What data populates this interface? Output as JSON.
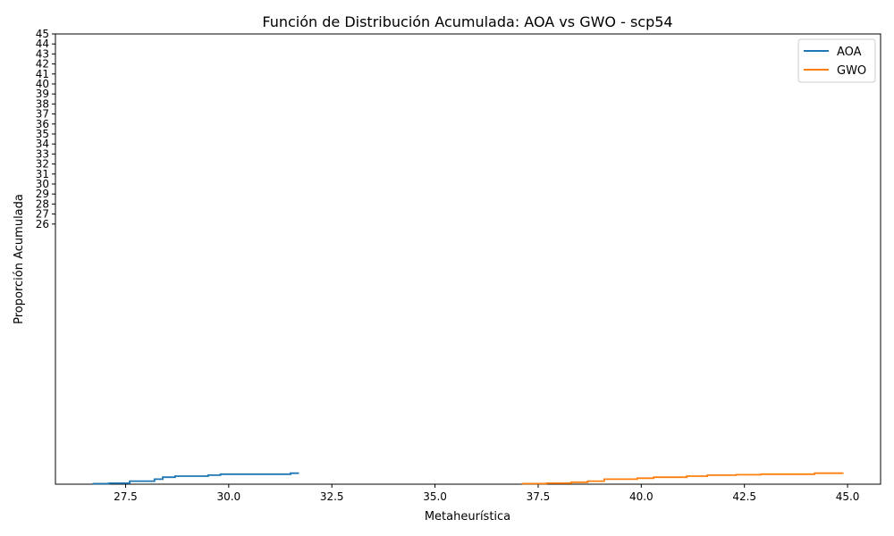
{
  "chart_data": {
    "type": "line",
    "title": "Función de Distribución Acumulada: AOA vs GWO - scp54",
    "xlabel": "Metaheurística",
    "ylabel": "Proporción Acumulada",
    "xlim": [
      25.8,
      45.8
    ],
    "ylim": [
      0,
      45
    ],
    "x_ticks": [
      27.5,
      30.0,
      32.5,
      35.0,
      37.5,
      40.0,
      42.5,
      45.0
    ],
    "x_tick_labels": [
      "27.5",
      "30.0",
      "32.5",
      "35.0",
      "37.5",
      "40.0",
      "42.5",
      "45.0"
    ],
    "y_ticks": [
      26,
      27,
      28,
      29,
      30,
      31,
      32,
      33,
      34,
      35,
      36,
      37,
      38,
      39,
      40,
      41,
      42,
      43,
      44,
      45
    ],
    "y_tick_labels": [
      "26",
      "27",
      "28",
      "29",
      "30",
      "31",
      "32",
      "33",
      "34",
      "35",
      "36",
      "37",
      "38",
      "39",
      "40",
      "41",
      "42",
      "43",
      "44",
      "45"
    ],
    "legend_position": "top-right",
    "series": [
      {
        "name": "AOA",
        "color": "#1f77b4",
        "x": [
          26.7,
          27.1,
          27.6,
          28.2,
          28.4,
          28.7,
          29.5,
          29.8,
          30.5,
          31.5,
          31.7
        ],
        "y": [
          0.05,
          0.1,
          0.3,
          0.5,
          0.7,
          0.8,
          0.9,
          1.0,
          1.0,
          1.1,
          1.1
        ]
      },
      {
        "name": "GWO",
        "color": "#ff7f0e",
        "x": [
          37.1,
          37.7,
          38.3,
          38.7,
          39.1,
          39.9,
          40.3,
          41.1,
          41.6,
          42.3,
          42.9,
          44.2,
          44.9
        ],
        "y": [
          0.05,
          0.1,
          0.2,
          0.3,
          0.5,
          0.6,
          0.7,
          0.8,
          0.9,
          0.95,
          1.0,
          1.1,
          1.1
        ]
      }
    ]
  }
}
